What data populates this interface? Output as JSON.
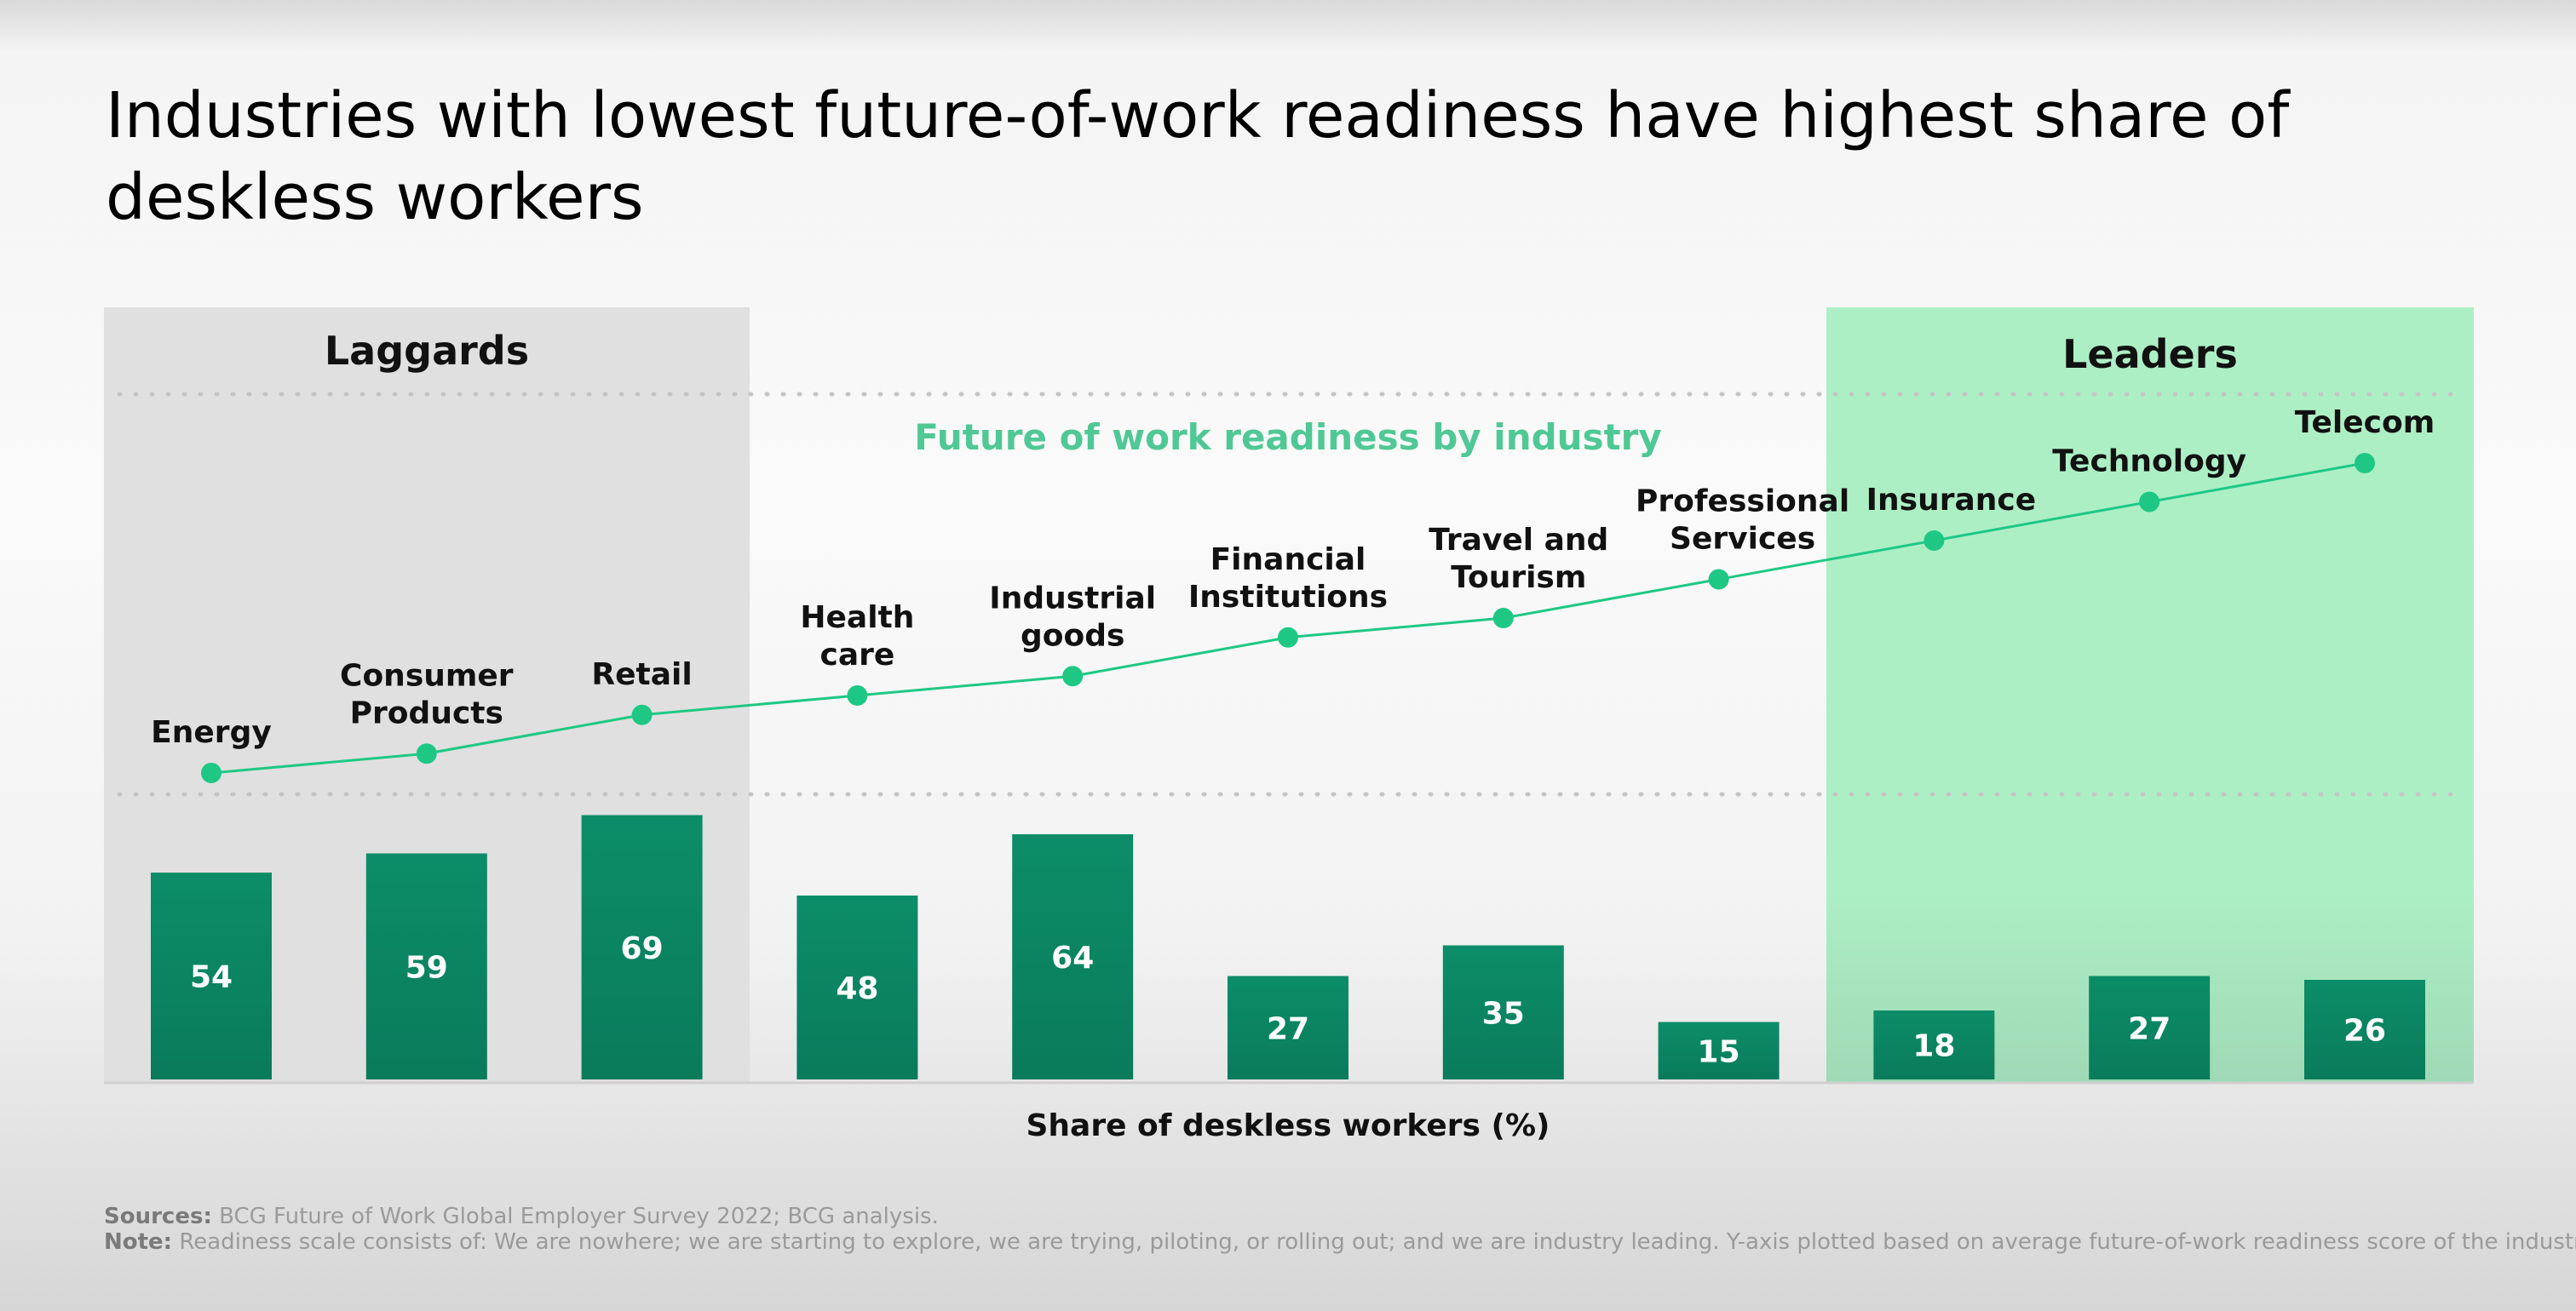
{
  "title": "Industries with lowest future-of-work readiness have highest share of deskless workers",
  "chart_data": {
    "type": "bar+line",
    "subtitle": "Future of work readiness by industry",
    "xlabel": "Share of deskless workers (%)",
    "categories": [
      "Energy",
      "Consumer Products",
      "Retail",
      "Health care",
      "Industrial goods",
      "Financial Institutions",
      "Travel and Tourism",
      "Professional Services",
      "Insurance",
      "Technology",
      "Telecom"
    ],
    "category_label_lines": [
      [
        "Energy"
      ],
      [
        "Consumer",
        "Products"
      ],
      [
        "Retail"
      ],
      [
        "Health",
        "care"
      ],
      [
        "Industrial",
        "goods"
      ],
      [
        "Financial",
        "Institutions"
      ],
      [
        "Travel and",
        "Tourism"
      ],
      [
        "Professional",
        "Services"
      ],
      [
        "Insurance"
      ],
      [
        "Technology"
      ],
      [
        "Telecom"
      ]
    ],
    "series": [
      {
        "kind": "bar",
        "values": [
          54,
          59,
          69,
          48,
          64,
          27,
          35,
          15,
          18,
          27,
          26
        ]
      },
      {
        "kind": "line",
        "values": [
          1.0,
          1.05,
          1.15,
          1.2,
          1.25,
          1.35,
          1.4,
          1.5,
          1.6,
          1.7,
          1.8
        ]
      }
    ],
    "groups": [
      {
        "label": "Laggards",
        "categories": [
          "Energy",
          "Consumer Products",
          "Retail"
        ],
        "color": "#e0e0e0"
      },
      {
        "label": "Leaders",
        "categories": [
          "Insurance",
          "Technology",
          "Telecom"
        ],
        "color": "#aeeec6"
      }
    ],
    "colors": {
      "bar": "#0b8a66",
      "line": "#1ec884",
      "subtitle": "#4fc895"
    },
    "grid": false
  },
  "footnotes": {
    "sources_label": "Sources:",
    "sources_text": " BCG Future of Work Global Employer Survey 2022; BCG analysis.",
    "note_label": "Note:",
    "note_text": " Readiness scale consists of: We are nowhere; we are starting to explore, we are trying, piloting, or rolling out; and we are industry leading. Y-axis plotted based on average future-of-work readiness score of the industry."
  }
}
